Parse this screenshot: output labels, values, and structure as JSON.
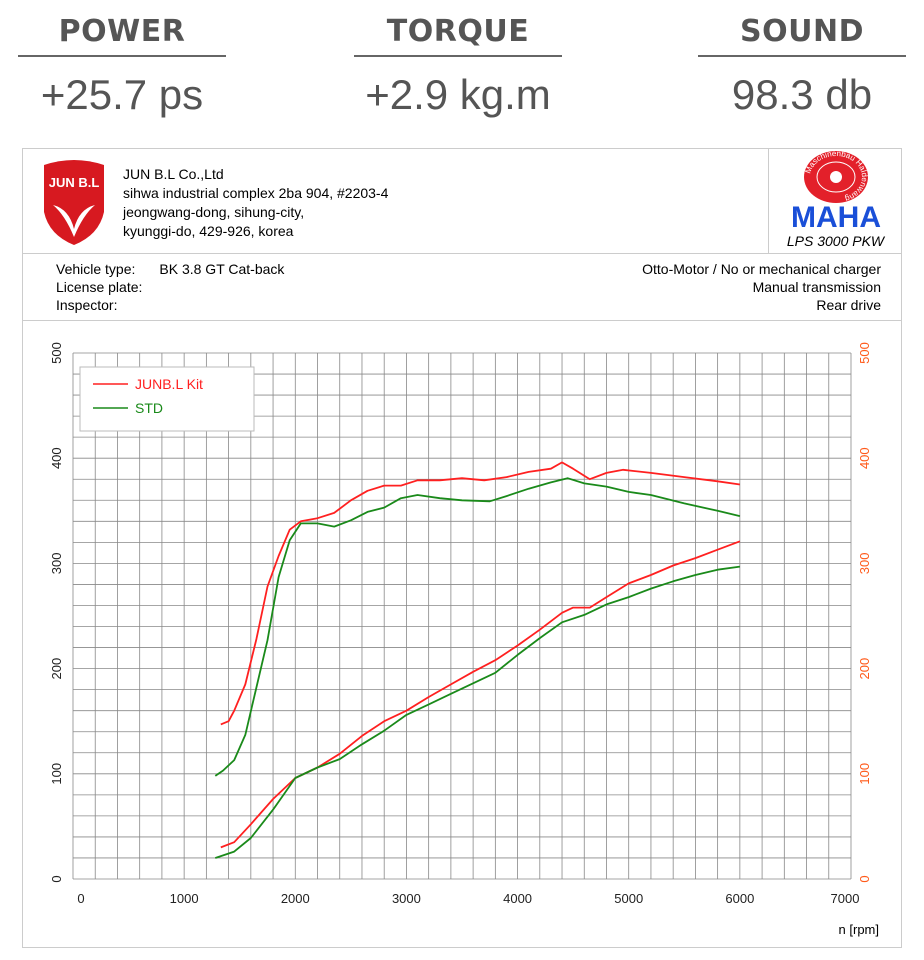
{
  "stats": [
    {
      "label": "POWER",
      "value": "+25.7 ps"
    },
    {
      "label": "TORQUE",
      "value": "+2.9 kg.m"
    },
    {
      "label": "SOUND",
      "value": "98.3 db"
    }
  ],
  "company": {
    "logo_text": "JUN B.L",
    "name": "JUN B.L Co.,Ltd",
    "addr1": "sihwa industrial complex 2ba 904, #2203-4",
    "addr2": "jeongwang-dong, sihung-city,",
    "addr3": "kyunggi-do, 429-926, korea"
  },
  "maha": {
    "logo_text": "MAHA",
    "ring_text": "Maschinenbau Haldenwang",
    "model": "LPS 3000 PKW"
  },
  "vehicle": {
    "type_label": "Vehicle type:",
    "type_value": "BK 3.8 GT Cat-back",
    "plate_label": "License plate:",
    "inspector_label": "Inspector:",
    "engine": "Otto-Motor / No or mechanical charger",
    "transmission": "Manual transmission",
    "drive": "Rear drive"
  },
  "colors": {
    "red": "#ff2020",
    "green": "#1a8a1a",
    "right_axis": "#ff5a1a"
  },
  "chart_data": {
    "type": "line",
    "xlabel": "n [rpm]",
    "xlim": [
      0,
      7000
    ],
    "ylim": [
      0,
      500
    ],
    "xticks": [
      0,
      1000,
      2000,
      3000,
      4000,
      5000,
      6000,
      7000
    ],
    "yticks": [
      0,
      100,
      200,
      300,
      400,
      500
    ],
    "grid": true,
    "legend": "top-left",
    "series": [
      {
        "name": "JUNB.L Kit",
        "legend": true,
        "color": "#ff2020",
        "x": [
          1330,
          1400,
          1450,
          1550,
          1650,
          1750,
          1850,
          1950,
          2050,
          2200,
          2350,
          2500,
          2650,
          2800,
          2950,
          3100,
          3300,
          3500,
          3700,
          3900,
          4100,
          4300,
          4400,
          4500,
          4650,
          4800,
          4950,
          5200,
          5500,
          5800,
          6000
        ],
        "y": [
          147,
          150,
          160,
          185,
          228,
          278,
          307,
          332,
          340,
          343,
          348,
          360,
          369,
          374,
          374,
          379,
          379,
          381,
          379,
          382,
          387,
          390,
          396,
          390,
          380,
          386,
          389,
          386,
          382,
          378,
          375
        ]
      },
      {
        "name": "STD",
        "legend": true,
        "color": "#1a8a1a",
        "x": [
          1280,
          1350,
          1450,
          1550,
          1650,
          1750,
          1850,
          1950,
          2050,
          2200,
          2350,
          2500,
          2650,
          2800,
          2950,
          3100,
          3300,
          3500,
          3750,
          3900,
          4100,
          4300,
          4450,
          4600,
          4800,
          5000,
          5200,
          5500,
          5800,
          6000
        ],
        "y": [
          98,
          103,
          113,
          137,
          182,
          227,
          287,
          322,
          338,
          338,
          335,
          341,
          349,
          353,
          362,
          365,
          362,
          360,
          359,
          364,
          371,
          377,
          381,
          376,
          373,
          368,
          365,
          357,
          350,
          345
        ]
      },
      {
        "name": "JUNB.L Kit power",
        "legend": false,
        "color": "#ff2020",
        "x": [
          1330,
          1450,
          1600,
          1800,
          2000,
          2200,
          2400,
          2600,
          2800,
          3000,
          3200,
          3400,
          3600,
          3800,
          4000,
          4200,
          4400,
          4500,
          4650,
          4800,
          5000,
          5200,
          5400,
          5600,
          5800,
          6000
        ],
        "y": [
          30,
          35,
          52,
          76,
          96,
          106,
          119,
          136,
          150,
          160,
          173,
          185,
          197,
          208,
          222,
          237,
          253,
          258,
          258,
          268,
          281,
          289,
          298,
          305,
          313,
          321
        ]
      },
      {
        "name": "STD power",
        "legend": false,
        "color": "#1a8a1a",
        "x": [
          1280,
          1450,
          1600,
          1800,
          2000,
          2200,
          2400,
          2600,
          2800,
          3000,
          3200,
          3400,
          3600,
          3800,
          4000,
          4200,
          4400,
          4600,
          4800,
          5000,
          5200,
          5400,
          5600,
          5800,
          6000
        ],
        "y": [
          20,
          26,
          39,
          66,
          96,
          106,
          114,
          128,
          141,
          156,
          166,
          176,
          186,
          196,
          213,
          229,
          244,
          251,
          261,
          268,
          276,
          283,
          289,
          294,
          297
        ]
      }
    ]
  }
}
